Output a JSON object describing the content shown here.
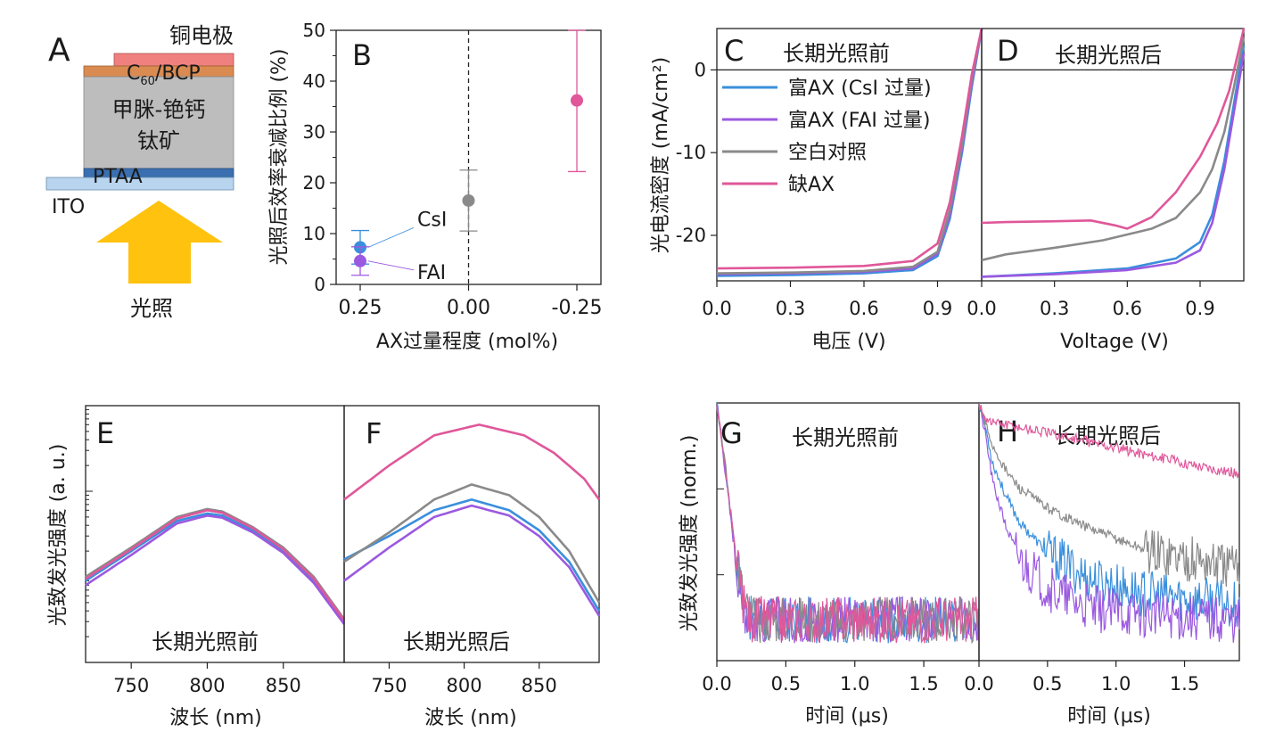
{
  "colors": {
    "csi": "#3a8fdc",
    "fai": "#9b59e0",
    "control": "#8a8a8a",
    "deficient": "#e0579a",
    "arrow": "#ffc20e"
  },
  "panel_a": {
    "letter": "A",
    "layers": {
      "electrode": "铜电极",
      "c60": "C",
      "c60_sub": "60",
      "bcp": "/BCP",
      "perovskite_1": "甲脒-铯钙",
      "perovskite_2": "钛矿",
      "ptaa": "PTAA",
      "ito": "ITO"
    },
    "illumination": "光照"
  },
  "chart_data": [
    {
      "panel": "B",
      "type": "scatter",
      "letter": "B",
      "xlabel": "AX过量程度  (mol%)",
      "ylabel": "光照后效率衰减比例 (%)",
      "xticks": [
        "0.25",
        "0.00",
        "-0.25"
      ],
      "ylim": [
        0,
        50
      ],
      "yticks": [
        "0",
        "10",
        "20",
        "30",
        "40",
        "50"
      ],
      "vline": 0,
      "points": [
        {
          "label": "CsI",
          "x": 0.25,
          "y": 7.3,
          "err_low": 3.3,
          "err_high": 3.3,
          "color_key": "csi"
        },
        {
          "label": "FAI",
          "x": 0.25,
          "y": 4.6,
          "err_low": 2.8,
          "err_high": 2.8,
          "color_key": "fai"
        },
        {
          "label": "",
          "x": 0.0,
          "y": 16.5,
          "err_low": 6.0,
          "err_high": 6.0,
          "color_key": "control"
        },
        {
          "label": "",
          "x": -0.25,
          "y": 36.2,
          "err_low": 14.0,
          "err_high": 13.8,
          "color_key": "deficient"
        }
      ]
    },
    {
      "panel": "C",
      "type": "line",
      "letter": "C",
      "title": "长期光照前",
      "xlabel": "电压 (V)",
      "ylabel": "光电流密度 (mA/cm²)",
      "xlim": [
        0,
        1.08
      ],
      "ylim": [
        -25.5,
        5
      ],
      "xticks": [
        "0.0",
        "0.3",
        "0.6",
        "0.9"
      ],
      "yticks": [
        "0",
        "-10",
        "-20"
      ],
      "legend": [
        "富AX (CsI 过量)",
        "富AX (FAI 过量)",
        "空白对照",
        "缺AX"
      ],
      "series": [
        {
          "name": "富AX (CsI 过量)",
          "color_key": "csi",
          "x": [
            0,
            0.3,
            0.6,
            0.8,
            0.9,
            0.95,
            1.0,
            1.04,
            1.08
          ],
          "y": [
            -24.9,
            -24.8,
            -24.6,
            -24.2,
            -22.5,
            -18,
            -10,
            -2,
            5
          ]
        },
        {
          "name": "富AX (FAI 过量)",
          "color_key": "fai",
          "x": [
            0,
            0.3,
            0.6,
            0.8,
            0.9,
            0.95,
            1.0,
            1.04,
            1.08
          ],
          "y": [
            -24.7,
            -24.6,
            -24.4,
            -24.0,
            -22.2,
            -17.5,
            -9.5,
            -1.5,
            5
          ]
        },
        {
          "name": "空白对照",
          "color_key": "control",
          "x": [
            0,
            0.3,
            0.6,
            0.8,
            0.9,
            0.95,
            1.0,
            1.04,
            1.08
          ],
          "y": [
            -24.6,
            -24.5,
            -24.3,
            -23.8,
            -22.0,
            -17,
            -9,
            -1,
            5
          ]
        },
        {
          "name": "缺AX",
          "color_key": "deficient",
          "x": [
            0,
            0.3,
            0.6,
            0.8,
            0.9,
            0.95,
            1.0,
            1.04,
            1.08
          ],
          "y": [
            -24.0,
            -23.9,
            -23.7,
            -23.1,
            -21.0,
            -16,
            -8,
            -0.5,
            5
          ]
        }
      ]
    },
    {
      "panel": "D",
      "type": "line",
      "letter": "D",
      "title": "长期光照后",
      "xlabel": "Voltage (V)",
      "xlim": [
        0,
        1.08
      ],
      "ylim": [
        -25.5,
        5
      ],
      "xticks": [
        "0.0",
        "0.3",
        "0.6",
        "0.9"
      ],
      "series": [
        {
          "name": "富AX (CsI 过量)",
          "color_key": "csi",
          "x": [
            0,
            0.3,
            0.6,
            0.8,
            0.9,
            0.95,
            1.0,
            1.04,
            1.08
          ],
          "y": [
            -25.0,
            -24.6,
            -24.0,
            -22.8,
            -20.8,
            -17.5,
            -11,
            -4,
            3
          ]
        },
        {
          "name": "富AX (FAI 过量)",
          "color_key": "fai",
          "x": [
            0,
            0.3,
            0.6,
            0.8,
            0.9,
            0.95,
            1.0,
            1.04,
            1.08
          ],
          "y": [
            -25.0,
            -24.7,
            -24.2,
            -23.3,
            -21.8,
            -18.5,
            -12,
            -5,
            2
          ]
        },
        {
          "name": "空白对照",
          "color_key": "control",
          "x": [
            0,
            0.1,
            0.3,
            0.5,
            0.7,
            0.8,
            0.9,
            0.95,
            1.0,
            1.04,
            1.08
          ],
          "y": [
            -23.0,
            -22.3,
            -21.5,
            -20.6,
            -19.2,
            -17.9,
            -14.8,
            -12,
            -7.5,
            -2,
            4
          ]
        },
        {
          "name": "缺AX",
          "color_key": "deficient",
          "x": [
            0,
            0.1,
            0.3,
            0.45,
            0.55,
            0.6,
            0.7,
            0.8,
            0.9,
            0.97,
            1.02,
            1.08
          ],
          "y": [
            -18.5,
            -18.4,
            -18.3,
            -18.2,
            -18.8,
            -19.2,
            -17.8,
            -14.8,
            -10.5,
            -6.5,
            -2.5,
            5
          ]
        }
      ]
    },
    {
      "panel": "E",
      "type": "line",
      "letter": "E",
      "title": "长期光照前",
      "xlabel": "波长 (nm)",
      "ylabel": "光致发光强度 (a. u.)",
      "xlim": [
        720,
        890
      ],
      "xticks": [
        "750",
        "800",
        "850"
      ],
      "y_scale": "log",
      "series": [
        {
          "name": "富AX (CsI 过量)",
          "color_key": "csi",
          "x": [
            720,
            750,
            780,
            800,
            810,
            830,
            850,
            870,
            890
          ],
          "y": [
            0.09,
            0.2,
            0.45,
            0.55,
            0.52,
            0.35,
            0.2,
            0.09,
            0.03
          ]
        },
        {
          "name": "富AX (FAI 过量)",
          "color_key": "fai",
          "x": [
            720,
            750,
            780,
            800,
            810,
            830,
            850,
            870,
            890
          ],
          "y": [
            0.08,
            0.18,
            0.42,
            0.52,
            0.49,
            0.33,
            0.19,
            0.085,
            0.028
          ]
        },
        {
          "name": "空白对照",
          "color_key": "control",
          "x": [
            720,
            750,
            780,
            800,
            810,
            830,
            850,
            870,
            890
          ],
          "y": [
            0.1,
            0.22,
            0.5,
            0.62,
            0.58,
            0.38,
            0.22,
            0.1,
            0.032
          ]
        },
        {
          "name": "缺AX",
          "color_key": "deficient",
          "x": [
            720,
            750,
            780,
            800,
            810,
            830,
            850,
            870,
            890
          ],
          "y": [
            0.095,
            0.21,
            0.48,
            0.6,
            0.56,
            0.37,
            0.21,
            0.095,
            0.031
          ]
        }
      ]
    },
    {
      "panel": "F",
      "type": "line",
      "letter": "F",
      "title": "长期光照后",
      "xlabel": "波长 (nm)",
      "xlim": [
        720,
        890
      ],
      "xticks": [
        "750",
        "800",
        "850"
      ],
      "y_scale": "log",
      "series": [
        {
          "name": "富AX (CsI 过量)",
          "color_key": "csi",
          "x": [
            720,
            750,
            780,
            805,
            830,
            850,
            870,
            890
          ],
          "y": [
            0.16,
            0.3,
            0.6,
            0.8,
            0.6,
            0.35,
            0.15,
            0.04
          ]
        },
        {
          "name": "富AX (FAI 过量)",
          "color_key": "fai",
          "x": [
            720,
            750,
            780,
            805,
            830,
            850,
            870,
            890
          ],
          "y": [
            0.09,
            0.22,
            0.5,
            0.68,
            0.52,
            0.3,
            0.13,
            0.035
          ]
        },
        {
          "name": "空白对照",
          "color_key": "control",
          "x": [
            720,
            750,
            780,
            805,
            830,
            850,
            870,
            890
          ],
          "y": [
            0.15,
            0.33,
            0.8,
            1.2,
            0.9,
            0.5,
            0.2,
            0.05
          ]
        },
        {
          "name": "缺AX",
          "color_key": "deficient",
          "x": [
            720,
            750,
            780,
            810,
            840,
            860,
            880,
            890
          ],
          "y": [
            0.8,
            2.0,
            4.5,
            6.0,
            4.5,
            2.8,
            1.4,
            0.8
          ]
        }
      ]
    },
    {
      "panel": "G",
      "type": "line",
      "letter": "G",
      "title": "长期光照前",
      "xlabel": "时间 (μs)",
      "ylabel": "光致发光强度 (norm.)",
      "xlim": [
        0,
        1.9
      ],
      "xticks": [
        "0.0",
        "0.5",
        "1.0",
        "1.5"
      ],
      "y_scale": "log",
      "series": [
        {
          "name": "富AX (CsI 过量)",
          "color_key": "csi",
          "x": [
            0,
            0.05,
            0.1,
            0.15,
            0.2,
            0.25,
            1.9
          ],
          "y": [
            1,
            0.25,
            0.05,
            0.012,
            0.004,
            0.003,
            0.003
          ]
        },
        {
          "name": "富AX (FAI 过量)",
          "color_key": "fai",
          "x": [
            0,
            0.05,
            0.1,
            0.15,
            0.2,
            0.25,
            1.9
          ],
          "y": [
            1,
            0.23,
            0.045,
            0.011,
            0.004,
            0.003,
            0.003
          ]
        },
        {
          "name": "空白对照",
          "color_key": "control",
          "x": [
            0,
            0.05,
            0.1,
            0.15,
            0.2,
            0.25,
            1.9
          ],
          "y": [
            1,
            0.27,
            0.055,
            0.013,
            0.0045,
            0.003,
            0.003
          ]
        },
        {
          "name": "缺AX",
          "color_key": "deficient",
          "x": [
            0,
            0.05,
            0.1,
            0.15,
            0.2,
            0.25,
            1.9
          ],
          "y": [
            1,
            0.24,
            0.05,
            0.012,
            0.004,
            0.003,
            0.003
          ]
        }
      ]
    },
    {
      "panel": "H",
      "type": "line",
      "letter": "H",
      "title": "长期光照后",
      "xlabel": "时间 (μs)",
      "xlim": [
        0,
        1.9
      ],
      "xticks": [
        "0.0",
        "0.5",
        "1.0",
        "1.5"
      ],
      "y_scale": "log",
      "series": [
        {
          "name": "富AX (CsI 过量)",
          "color_key": "csi",
          "x": [
            0,
            0.05,
            0.1,
            0.2,
            0.3,
            0.5,
            0.8,
            1.2,
            1.9
          ],
          "y": [
            1,
            0.5,
            0.2,
            0.08,
            0.04,
            0.018,
            0.009,
            0.006,
            0.0045
          ]
        },
        {
          "name": "富AX (FAI 过量)",
          "color_key": "fai",
          "x": [
            0,
            0.05,
            0.1,
            0.2,
            0.3,
            0.5,
            0.8,
            1.2,
            1.9
          ],
          "y": [
            1,
            0.4,
            0.12,
            0.035,
            0.015,
            0.007,
            0.004,
            0.0035,
            0.003
          ]
        },
        {
          "name": "空白对照",
          "color_key": "control",
          "x": [
            0,
            0.05,
            0.1,
            0.2,
            0.3,
            0.5,
            0.8,
            1.2,
            1.9
          ],
          "y": [
            1,
            0.55,
            0.32,
            0.16,
            0.1,
            0.06,
            0.035,
            0.02,
            0.012
          ]
        },
        {
          "name": "缺AX",
          "color_key": "deficient",
          "x": [
            0,
            0.05,
            0.1,
            0.5,
            1.0,
            1.5,
            1.9
          ],
          "y": [
            1,
            0.65,
            0.6,
            0.45,
            0.3,
            0.2,
            0.15
          ]
        }
      ]
    }
  ]
}
